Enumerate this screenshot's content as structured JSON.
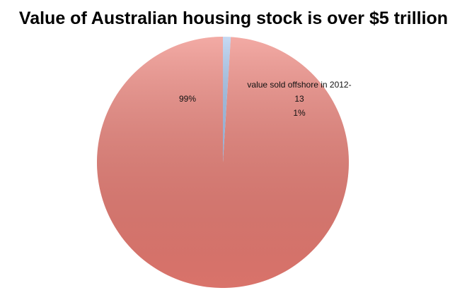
{
  "chart_data": {
    "type": "pie",
    "title": "Value of Australian housing stock is over $5 trillion",
    "categories": [
      null,
      "value sold offshore in 2012-13"
    ],
    "values": [
      99,
      1
    ],
    "value_labels": [
      "99%",
      "1%"
    ],
    "colors": [
      "#ec7d74",
      "#a7c6ee"
    ]
  }
}
